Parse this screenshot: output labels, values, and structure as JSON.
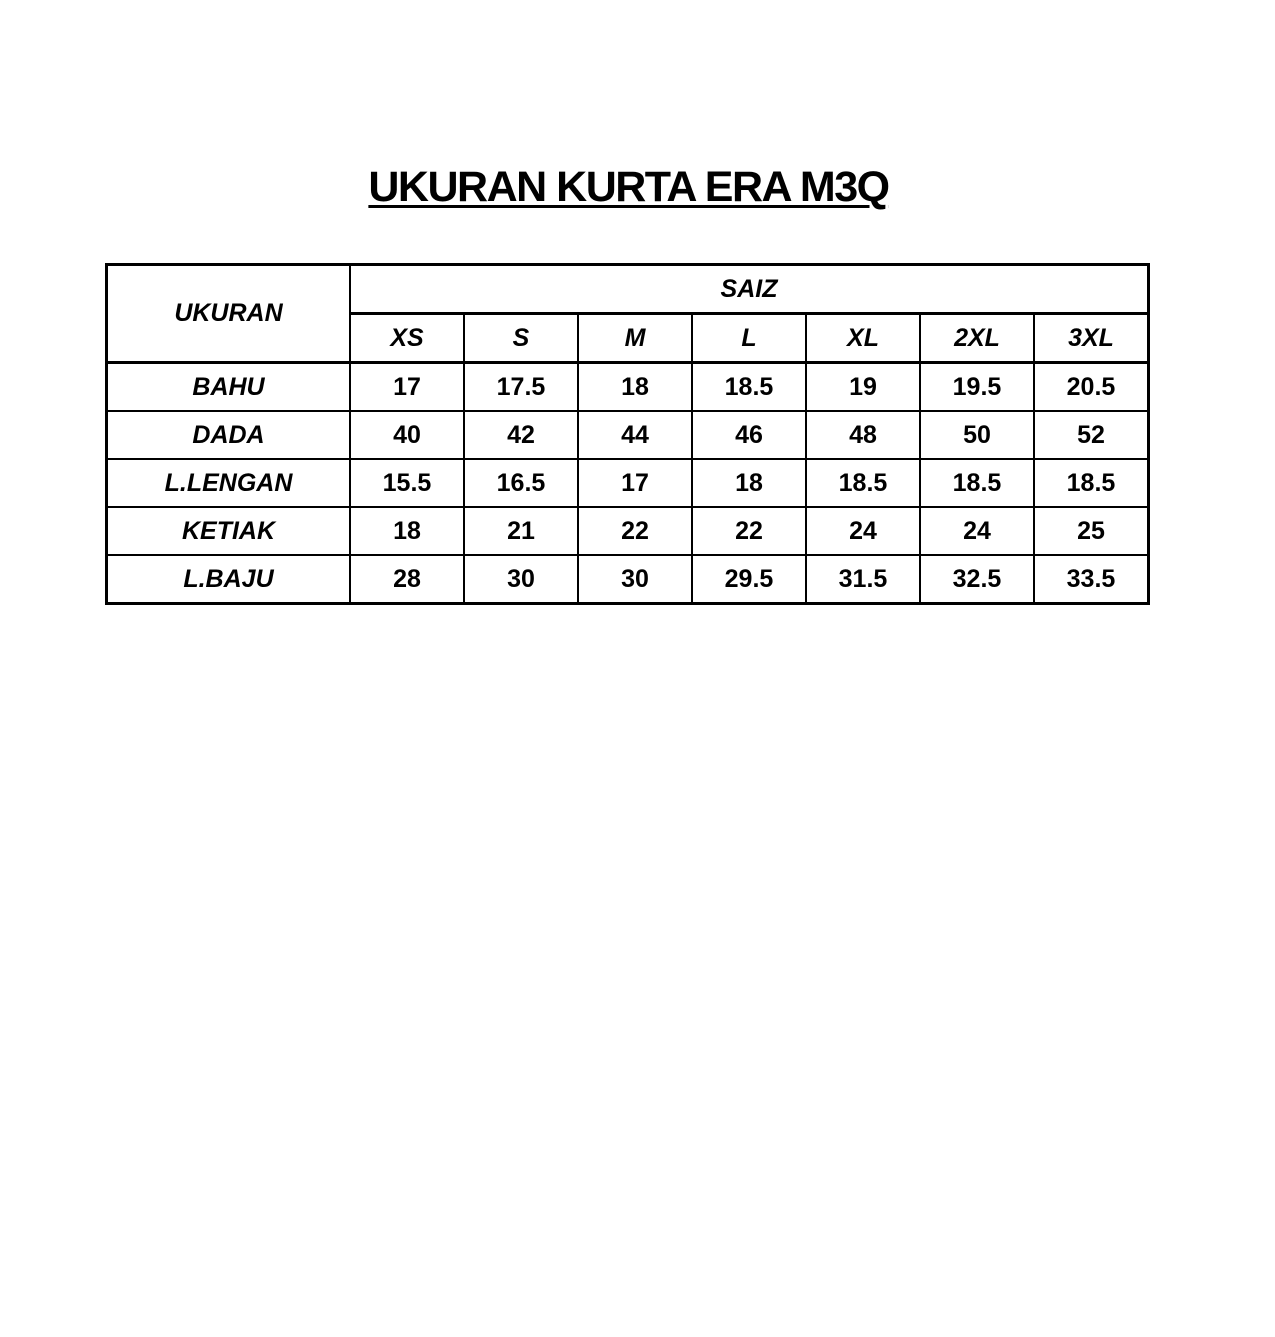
{
  "title": "UKURAN KURTA ERA M3Q",
  "table": {
    "corner_header": "UKURAN",
    "group_header": "SAIZ",
    "sizes": [
      "XS",
      "S",
      "M",
      "L",
      "XL",
      "2XL",
      "3XL"
    ],
    "rows": [
      {
        "label": "BAHU",
        "values": [
          "17",
          "17.5",
          "18",
          "18.5",
          "19",
          "19.5",
          "20.5"
        ]
      },
      {
        "label": "DADA",
        "values": [
          "40",
          "42",
          "44",
          "46",
          "48",
          "50",
          "52"
        ]
      },
      {
        "label": "L.LENGAN",
        "values": [
          "15.5",
          "16.5",
          "17",
          "18",
          "18.5",
          "18.5",
          "18.5"
        ]
      },
      {
        "label": "KETIAK",
        "values": [
          "18",
          "21",
          "22",
          "22",
          "24",
          "24",
          "25"
        ]
      },
      {
        "label": "L.BAJU",
        "values": [
          "28",
          "30",
          "30",
          "29.5",
          "31.5",
          "32.5",
          "33.5"
        ]
      }
    ]
  }
}
